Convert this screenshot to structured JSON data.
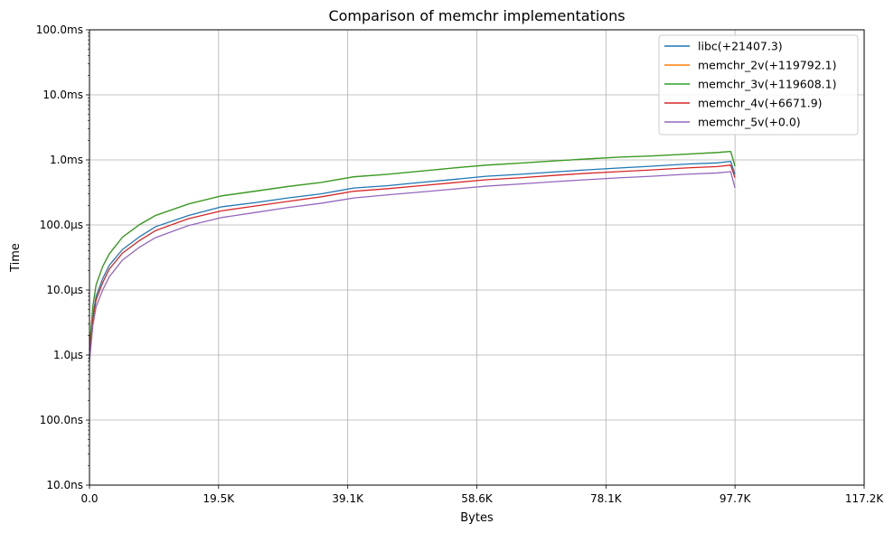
{
  "chart_data": {
    "type": "line",
    "title": "Comparison of memchr implementations",
    "xlabel": "Bytes",
    "ylabel": "Time",
    "x_scale": "linear",
    "y_scale": "log",
    "xlim": [
      0,
      117200
    ],
    "ylim_seconds": [
      1e-08,
      0.1
    ],
    "grid": true,
    "legend_position": "top-right",
    "x_ticks": [
      {
        "value": 0,
        "label": "0.0"
      },
      {
        "value": 19530,
        "label": "19.5K"
      },
      {
        "value": 39070,
        "label": "39.1K"
      },
      {
        "value": 58600,
        "label": "58.6K"
      },
      {
        "value": 78130,
        "label": "78.1K"
      },
      {
        "value": 97660,
        "label": "97.7K"
      },
      {
        "value": 117200,
        "label": "117.2K"
      }
    ],
    "y_ticks": [
      {
        "value": 1e-08,
        "label": "10.0ns"
      },
      {
        "value": 1e-07,
        "label": "100.0ns"
      },
      {
        "value": 1e-06,
        "label": "1.0μs"
      },
      {
        "value": 1e-05,
        "label": "10.0μs"
      },
      {
        "value": 0.0001,
        "label": "100.0μs"
      },
      {
        "value": 0.001,
        "label": "1.0ms"
      },
      {
        "value": 0.01,
        "label": "10.0ms"
      },
      {
        "value": 0.1,
        "label": "100.0ms"
      }
    ],
    "x": [
      0,
      500,
      1000,
      2000,
      3000,
      5000,
      7500,
      10000,
      15000,
      20000,
      25000,
      30000,
      35000,
      40000,
      45000,
      50000,
      55000,
      60000,
      65000,
      70000,
      75000,
      80000,
      85000,
      90000,
      95000,
      97000,
      97660
    ],
    "series": [
      {
        "name": "libc(+21407.3)",
        "color": "#1f77b4",
        "values": [
          1e-06,
          4e-06,
          8e-06,
          1.5e-05,
          2.4e-05,
          4.2e-05,
          6.5e-05,
          9.4e-05,
          0.00014,
          0.00019,
          0.00022,
          0.00026,
          0.0003,
          0.00037,
          0.0004,
          0.00045,
          0.0005,
          0.00056,
          0.0006,
          0.00065,
          0.0007,
          0.00075,
          0.0008,
          0.00086,
          0.0009,
          0.00095,
          0.0006
        ]
      },
      {
        "name": "memchr_2v(+119792.1)",
        "color": "#ff7f0e",
        "values": [
          1.2e-06,
          5.5e-06,
          1.2e-05,
          2.3e-05,
          3.6e-05,
          6.5e-05,
          0.0001,
          0.00014,
          0.00021,
          0.00028,
          0.00033,
          0.00039,
          0.00045,
          0.00055,
          0.0006,
          0.00067,
          0.00075,
          0.00083,
          0.00089,
          0.00096,
          0.00103,
          0.0011,
          0.00115,
          0.00122,
          0.0013,
          0.00135,
          0.0008
        ]
      },
      {
        "name": "memchr_3v(+119608.1)",
        "color": "#2ca02c",
        "values": [
          1.2e-06,
          5.5e-06,
          1.2e-05,
          2.3e-05,
          3.6e-05,
          6.5e-05,
          0.0001,
          0.00014,
          0.00021,
          0.00028,
          0.00033,
          0.00039,
          0.00045,
          0.00055,
          0.0006,
          0.00067,
          0.00075,
          0.00083,
          0.00089,
          0.00096,
          0.00103,
          0.0011,
          0.00115,
          0.00122,
          0.0013,
          0.00135,
          0.0008
        ]
      },
      {
        "name": "memchr_4v(+6671.9)",
        "color": "#d62728",
        "values": [
          1e-06,
          3.5e-06,
          7e-06,
          1.3e-05,
          2.1e-05,
          3.7e-05,
          5.7e-05,
          8.2e-05,
          0.000125,
          0.000165,
          0.000195,
          0.00023,
          0.00027,
          0.00033,
          0.00036,
          0.0004,
          0.000445,
          0.000495,
          0.00053,
          0.000575,
          0.00062,
          0.00066,
          0.0007,
          0.00075,
          0.00079,
          0.00083,
          0.00053
        ]
      },
      {
        "name": "memchr_5v(+0.0)",
        "color": "#9467bd",
        "values": [
          8e-07,
          2.8e-06,
          5.5e-06,
          1e-05,
          1.6e-05,
          2.9e-05,
          4.5e-05,
          6.4e-05,
          9.8e-05,
          0.00013,
          0.000155,
          0.000185,
          0.000215,
          0.00026,
          0.00029,
          0.00032,
          0.000355,
          0.000395,
          0.000425,
          0.00046,
          0.000495,
          0.00053,
          0.00056,
          0.0006,
          0.00063,
          0.00066,
          0.00037
        ]
      }
    ]
  }
}
